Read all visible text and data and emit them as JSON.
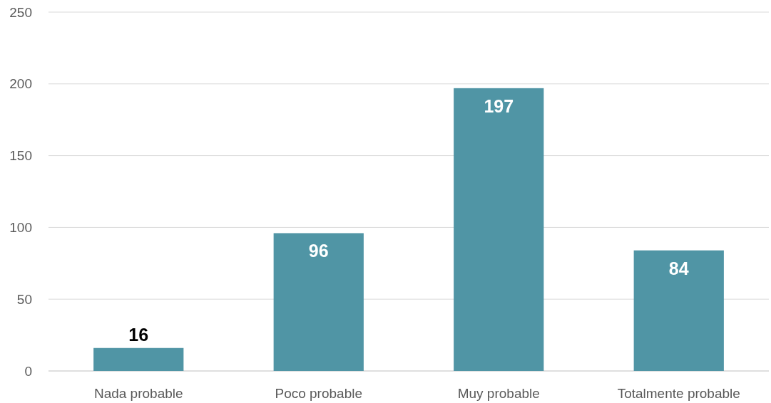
{
  "chart_data": {
    "type": "bar",
    "categories": [
      "Nada probable",
      "Poco probable",
      "Muy probable",
      "Totalmente probable"
    ],
    "values": [
      16,
      96,
      197,
      84
    ],
    "color": "#5095a5",
    "ylim": [
      0,
      250
    ],
    "yticks": [
      0,
      50,
      100,
      150,
      200,
      250
    ],
    "grid": "y",
    "data_labels": true
  }
}
